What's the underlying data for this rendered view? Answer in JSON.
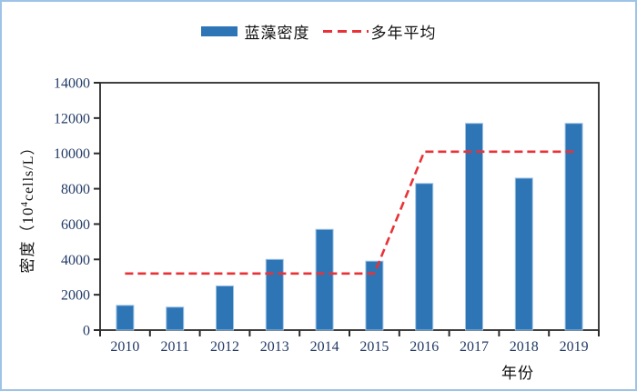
{
  "figure": {
    "background": "#ffffff",
    "border_color": "#9dc3e6",
    "axis_color": "#2b2b2b",
    "tick_text_color": "#223a66"
  },
  "legend": {
    "bar_label": "蓝藻密度",
    "line_label": "多年平均"
  },
  "chart_data": {
    "type": "bar",
    "title": "",
    "categories": [
      "2010",
      "2011",
      "2012",
      "2013",
      "2014",
      "2015",
      "2016",
      "2017",
      "2018",
      "2019"
    ],
    "series": [
      {
        "name": "蓝藻密度",
        "type": "bar",
        "color": "#2e75b6",
        "edge_color": "#9dc3e6",
        "values": [
          1400,
          1300,
          2500,
          4000,
          5700,
          3900,
          8300,
          11700,
          8600,
          11700
        ]
      },
      {
        "name": "多年平均",
        "type": "line",
        "dashed": true,
        "color": "#e83237",
        "values": [
          3200,
          3200,
          3200,
          3200,
          3200,
          3200,
          10100,
          10100,
          10100,
          10100
        ]
      }
    ],
    "xlabel": "年份",
    "ylabel": "密度（10⁴cells/L）",
    "ylabel_parts": {
      "prefix": "密度（10",
      "sup": "4",
      "suffix": "cells/L）"
    },
    "ylim": [
      0,
      14000
    ],
    "yticks": [
      0,
      2000,
      4000,
      6000,
      8000,
      10000,
      12000,
      14000
    ],
    "grid": false,
    "legend_position": "top-center"
  }
}
